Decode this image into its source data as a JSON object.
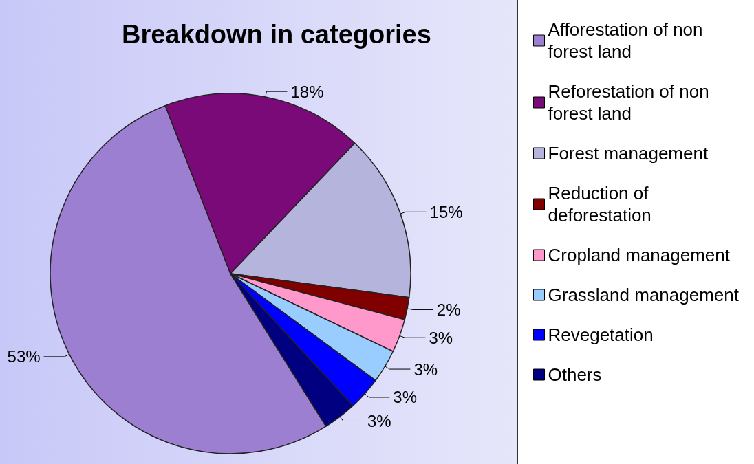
{
  "chart_data": {
    "type": "pie",
    "title": "Breakdown in categories",
    "categories": [
      "Afforestation of non forest land",
      "Reforestation of non forest land",
      "Forest management",
      "Reduction of deforestation",
      "Cropland management",
      "Grassland management",
      "Revegetation",
      "Others"
    ],
    "values": [
      53,
      18,
      15,
      2,
      3,
      3,
      3,
      3
    ],
    "colors": [
      "#9c7fd0",
      "#7a0a78",
      "#b4b4dc",
      "#800000",
      "#ff99cc",
      "#99ccff",
      "#0000ff",
      "#000080"
    ],
    "value_labels": [
      "53%",
      "18%",
      "15%",
      "2%",
      "3%",
      "3%",
      "3%",
      "3%"
    ],
    "legend": "right"
  }
}
